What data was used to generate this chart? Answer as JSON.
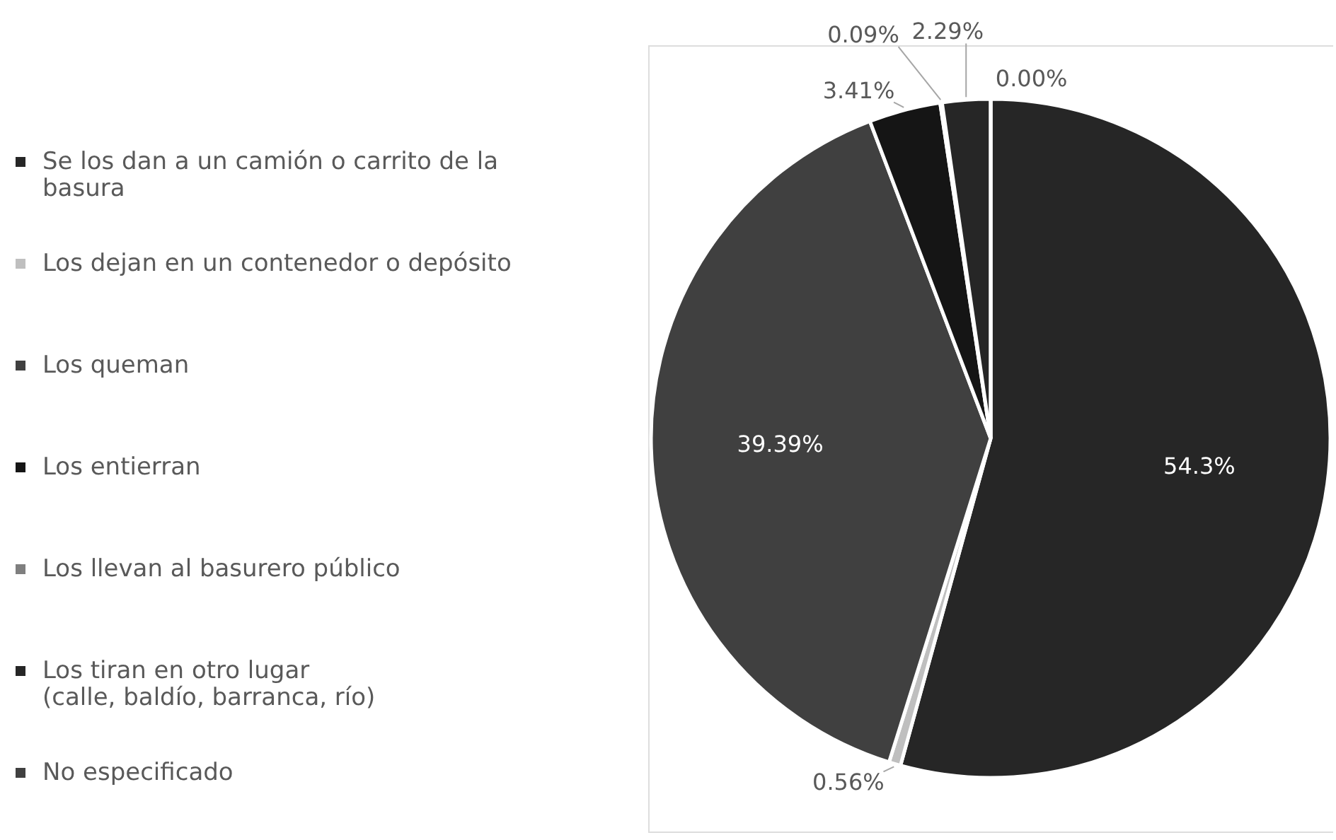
{
  "chart_data": {
    "type": "pie",
    "categories": [
      "Se los dan a un camión o carrito de la\nbasura",
      "Los dejan en un contenedor o depósito",
      "Los queman",
      "Los entierran",
      "Los llevan al basurero público",
      "Los tiran en otro lugar\n(calle, baldío, barranca, río)",
      "No especificado"
    ],
    "values": [
      54.3,
      0.56,
      39.39,
      3.41,
      0.09,
      2.29,
      0.0
    ],
    "colors": [
      "#262626",
      "#bfbfbf",
      "#404040",
      "#151515",
      "#7f7f7f",
      "#262626",
      "#404040"
    ],
    "value_labels": [
      "54.3%",
      "0.56%",
      "39.39%",
      "3.41%",
      "0.09%",
      "2.29%",
      "0.00%"
    ],
    "legend": "left"
  }
}
